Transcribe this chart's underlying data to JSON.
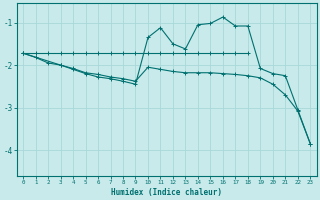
{
  "xlabel": "Humidex (Indice chaleur)",
  "bg_color": "#c8eaea",
  "line_color": "#007070",
  "grid_color": "#a8d8d8",
  "xlim": [
    -0.5,
    23.5
  ],
  "ylim": [
    -4.6,
    -0.55
  ],
  "yticks": [
    -4,
    -3,
    -2,
    -1
  ],
  "xticks": [
    0,
    1,
    2,
    3,
    4,
    5,
    6,
    7,
    8,
    9,
    10,
    11,
    12,
    13,
    14,
    15,
    16,
    17,
    18,
    19,
    20,
    21,
    22,
    23
  ],
  "line1_x": [
    0,
    1,
    2,
    3,
    4,
    5,
    6,
    7,
    8,
    9,
    10,
    11,
    12,
    13,
    14,
    15,
    16,
    17,
    18
  ],
  "line1_y": [
    -1.72,
    -1.72,
    -1.72,
    -1.72,
    -1.72,
    -1.72,
    -1.72,
    -1.72,
    -1.72,
    -1.72,
    -1.72,
    -1.72,
    -1.72,
    -1.72,
    -1.72,
    -1.72,
    -1.72,
    -1.72,
    -1.72
  ],
  "line2_x": [
    0,
    1,
    2,
    3,
    4,
    5,
    6,
    7,
    8,
    9,
    10,
    11,
    12,
    13,
    14,
    15,
    16,
    17,
    18,
    19,
    20,
    21,
    22,
    23
  ],
  "line2_y": [
    -1.72,
    -1.82,
    -1.95,
    -2.0,
    -2.08,
    -2.18,
    -2.22,
    -2.28,
    -2.32,
    -2.38,
    -2.05,
    -2.1,
    -2.15,
    -2.18,
    -2.18,
    -2.18,
    -2.2,
    -2.22,
    -2.25,
    -2.3,
    -2.45,
    -2.7,
    -3.08,
    -3.85
  ],
  "line3_x": [
    0,
    3,
    4,
    5,
    6,
    7,
    8,
    9,
    10,
    11,
    12,
    13,
    14,
    15,
    16,
    17,
    18,
    19,
    20,
    21,
    22,
    23
  ],
  "line3_y": [
    -1.72,
    -2.0,
    -2.1,
    -2.2,
    -2.28,
    -2.32,
    -2.38,
    -2.45,
    -1.35,
    -1.12,
    -1.5,
    -1.62,
    -1.05,
    -1.02,
    -0.87,
    -1.08,
    -1.08,
    -2.08,
    -2.2,
    -2.25,
    -3.05,
    -3.85
  ]
}
